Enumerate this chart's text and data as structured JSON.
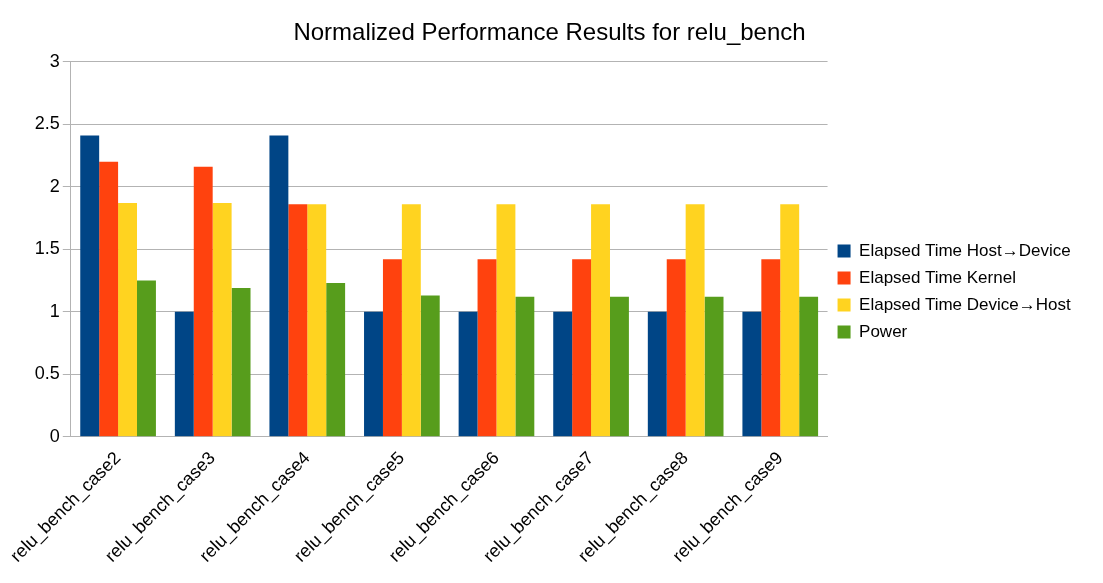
{
  "chart_data": {
    "type": "bar",
    "title": "Normalized Performance Results for relu_bench",
    "categories": [
      "relu_bench_case2",
      "relu_bench_case3",
      "relu_bench_case4",
      "relu_bench_case5",
      "relu_bench_case6",
      "relu_bench_case7",
      "relu_bench_case8",
      "relu_bench_case9"
    ],
    "series": [
      {
        "name": "Elapsed Time Host→Device",
        "color": "#004586",
        "values": [
          2.41,
          1.0,
          2.41,
          1.0,
          1.0,
          1.0,
          1.0,
          1.0
        ]
      },
      {
        "name": "Elapsed Time Kernel",
        "color": "#ff420e",
        "values": [
          2.2,
          2.16,
          1.86,
          1.42,
          1.42,
          1.42,
          1.42,
          1.42
        ]
      },
      {
        "name": "Elapsed Time Device→Host",
        "color": "#ffd320",
        "values": [
          1.87,
          1.87,
          1.86,
          1.86,
          1.86,
          1.86,
          1.86,
          1.86
        ]
      },
      {
        "name": "Power",
        "color": "#579d1c",
        "values": [
          1.25,
          1.19,
          1.23,
          1.13,
          1.12,
          1.12,
          1.12,
          1.12
        ]
      }
    ],
    "ylim": [
      0,
      3
    ],
    "yticks": [
      0,
      0.5,
      1,
      1.5,
      2,
      2.5,
      3
    ],
    "grid": "y",
    "legend": "right"
  }
}
